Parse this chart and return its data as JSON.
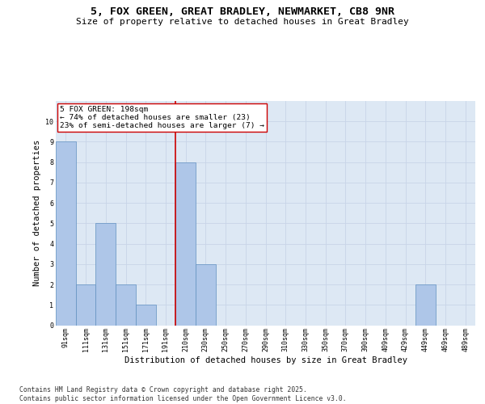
{
  "title": "5, FOX GREEN, GREAT BRADLEY, NEWMARKET, CB8 9NR",
  "subtitle": "Size of property relative to detached houses in Great Bradley",
  "xlabel": "Distribution of detached houses by size in Great Bradley",
  "ylabel": "Number of detached properties",
  "categories": [
    "91sqm",
    "111sqm",
    "131sqm",
    "151sqm",
    "171sqm",
    "191sqm",
    "210sqm",
    "230sqm",
    "250sqm",
    "270sqm",
    "290sqm",
    "310sqm",
    "330sqm",
    "350sqm",
    "370sqm",
    "390sqm",
    "409sqm",
    "429sqm",
    "449sqm",
    "469sqm",
    "489sqm"
  ],
  "values": [
    9,
    2,
    5,
    2,
    1,
    0,
    8,
    3,
    0,
    0,
    0,
    0,
    0,
    0,
    0,
    0,
    0,
    0,
    2,
    0,
    0
  ],
  "bar_color": "#aec6e8",
  "bar_edgecolor": "#6090c0",
  "reference_line_color": "#cc0000",
  "annotation_text": "5 FOX GREEN: 198sqm\n← 74% of detached houses are smaller (23)\n23% of semi-detached houses are larger (7) →",
  "annotation_box_edgecolor": "#cc0000",
  "ylim": [
    0,
    11
  ],
  "yticks": [
    0,
    1,
    2,
    3,
    4,
    5,
    6,
    7,
    8,
    9,
    10
  ],
  "grid_color": "#c8d4e8",
  "background_color": "#dde8f4",
  "footer": "Contains HM Land Registry data © Crown copyright and database right 2025.\nContains public sector information licensed under the Open Government Licence v3.0.",
  "title_fontsize": 9.5,
  "subtitle_fontsize": 8,
  "annotation_fontsize": 6.8,
  "footer_fontsize": 5.8,
  "axis_label_fontsize": 7.5,
  "tick_fontsize": 6.0
}
